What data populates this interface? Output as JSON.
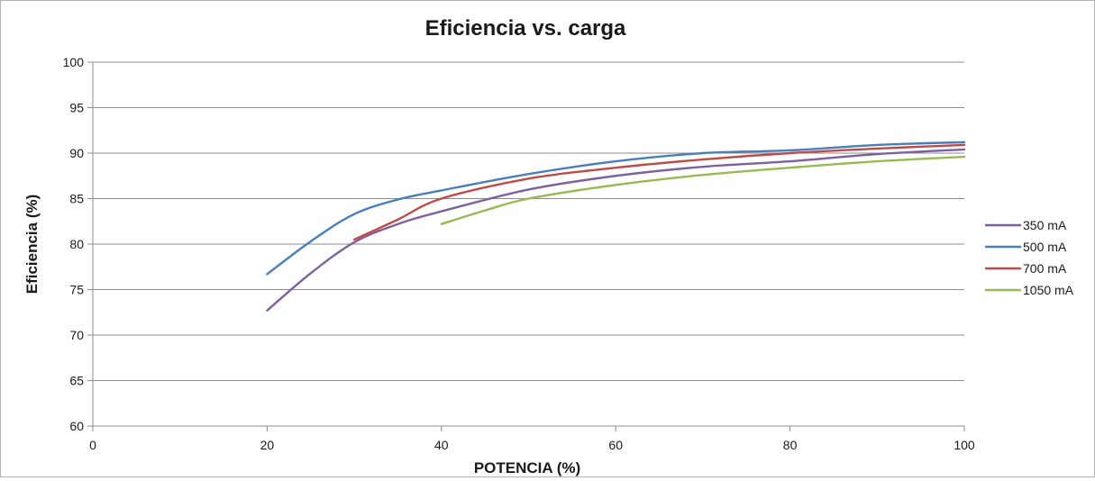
{
  "chart_data": {
    "type": "line",
    "title": "Eficiencia vs. carga",
    "xlabel": "POTENCIA (%)",
    "ylabel": "Eficiencia (%)",
    "xlim": [
      0,
      100
    ],
    "ylim": [
      60,
      100
    ],
    "x_ticks": [
      0,
      20,
      40,
      60,
      80,
      100
    ],
    "y_ticks": [
      60,
      65,
      70,
      75,
      80,
      85,
      90,
      95,
      100
    ],
    "grid": "horizontal",
    "legend_position": "right",
    "series": [
      {
        "name": "350 mA",
        "color": "#7d60a0",
        "points": [
          [
            20,
            72.7
          ],
          [
            25,
            76.8
          ],
          [
            30,
            80.2
          ],
          [
            35,
            82.2
          ],
          [
            40,
            83.6
          ],
          [
            50,
            86.0
          ],
          [
            60,
            87.5
          ],
          [
            70,
            88.5
          ],
          [
            80,
            89.1
          ],
          [
            90,
            89.9
          ],
          [
            100,
            90.4
          ]
        ]
      },
      {
        "name": "500 mA",
        "color": "#4a7ebb",
        "points": [
          [
            20,
            76.7
          ],
          [
            25,
            80.3
          ],
          [
            30,
            83.3
          ],
          [
            35,
            84.9
          ],
          [
            40,
            85.9
          ],
          [
            50,
            87.7
          ],
          [
            60,
            89.1
          ],
          [
            70,
            90.0
          ],
          [
            80,
            90.3
          ],
          [
            90,
            90.9
          ],
          [
            100,
            91.2
          ]
        ]
      },
      {
        "name": "700 mA",
        "color": "#be4b48",
        "points": [
          [
            30,
            80.5
          ],
          [
            35,
            82.7
          ],
          [
            40,
            85.0
          ],
          [
            50,
            87.2
          ],
          [
            60,
            88.4
          ],
          [
            70,
            89.3
          ],
          [
            80,
            90.0
          ],
          [
            90,
            90.5
          ],
          [
            100,
            90.9
          ]
        ]
      },
      {
        "name": "1050 mA",
        "color": "#98b954",
        "points": [
          [
            40,
            82.2
          ],
          [
            45,
            83.7
          ],
          [
            50,
            85.0
          ],
          [
            60,
            86.5
          ],
          [
            70,
            87.6
          ],
          [
            80,
            88.4
          ],
          [
            90,
            89.1
          ],
          [
            100,
            89.6
          ]
        ]
      }
    ]
  }
}
